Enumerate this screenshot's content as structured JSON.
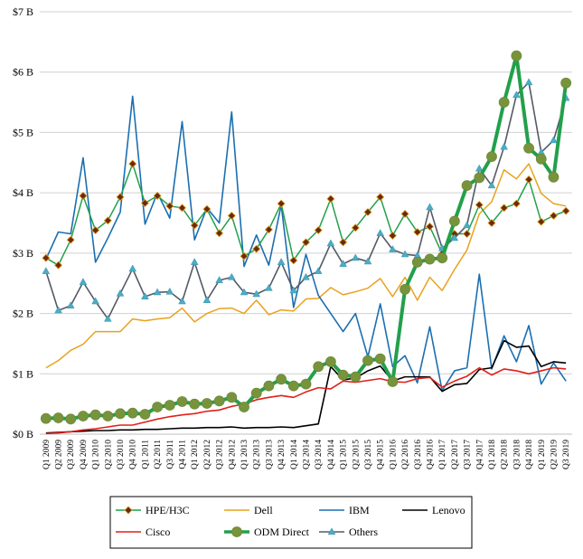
{
  "chart_data": {
    "type": "line",
    "title": "",
    "xlabel": "",
    "ylabel": "",
    "ylim": [
      0,
      7
    ],
    "y_ticks": [
      0,
      1,
      2,
      3,
      4,
      5,
      6,
      7
    ],
    "y_tick_labels": [
      "$0 B",
      "$1 B",
      "$2 B",
      "$3 B",
      "$4 B",
      "$5 B",
      "$6 B",
      "$7 B"
    ],
    "grid": "horizontal",
    "legend_position": "bottom",
    "categories": [
      "Q1 2009",
      "Q2 2009",
      "Q3 2009",
      "Q4 2009",
      "Q1 2010",
      "Q2 2010",
      "Q3 2010",
      "Q4 2010",
      "Q1 2011",
      "Q2 2011",
      "Q3 2011",
      "Q4 2011",
      "Q1 2012",
      "Q2 2012",
      "Q3 2012",
      "Q4 2012",
      "Q1 2013",
      "Q2 2013",
      "Q3 2013",
      "Q4 2013",
      "Q1 2014",
      "Q2 2014",
      "Q3 2014",
      "Q4 2014",
      "Q1 2015",
      "Q2 2015",
      "Q3 2015",
      "Q4 2015",
      "Q1 2016",
      "Q2 2016",
      "Q3 2016",
      "Q4 2016",
      "Q1 2017",
      "Q2 2017",
      "Q3 2017",
      "Q4 2017",
      "Q1 2018",
      "Q2 2018",
      "Q3 2018",
      "Q4 2018",
      "Q1 2019",
      "Q2 2019",
      "Q3 2019"
    ],
    "series": [
      {
        "name": "HPE/H3C",
        "color": "#22a04b",
        "marker": "diamond-dark",
        "width": 1.5,
        "values": [
          2.92,
          2.8,
          3.22,
          3.95,
          3.38,
          3.54,
          3.93,
          4.48,
          3.83,
          3.95,
          3.78,
          3.75,
          3.46,
          3.73,
          3.33,
          3.62,
          2.95,
          3.07,
          3.39,
          3.82,
          2.88,
          3.18,
          3.38,
          3.9,
          3.18,
          3.42,
          3.68,
          3.93,
          3.29,
          3.65,
          3.35,
          3.44,
          2.99,
          3.32,
          3.32,
          3.8,
          3.5,
          3.75,
          3.82,
          4.22,
          3.52,
          3.62,
          3.7
        ]
      },
      {
        "name": "Dell",
        "color": "#e8a21e",
        "marker": "none",
        "width": 1.5,
        "values": [
          1.1,
          1.22,
          1.39,
          1.49,
          1.7,
          1.7,
          1.7,
          1.91,
          1.88,
          1.91,
          1.93,
          2.09,
          1.86,
          2.0,
          2.08,
          2.09,
          2.0,
          2.22,
          1.98,
          2.06,
          2.04,
          2.24,
          2.25,
          2.43,
          2.31,
          2.36,
          2.42,
          2.58,
          2.28,
          2.6,
          2.22,
          2.6,
          2.38,
          2.73,
          3.05,
          3.65,
          3.85,
          4.38,
          4.23,
          4.48,
          3.99,
          3.82,
          3.78
        ]
      },
      {
        "name": "IBM",
        "color": "#1b6fb0",
        "marker": "none",
        "width": 1.6,
        "values": [
          2.9,
          3.35,
          3.32,
          4.58,
          2.85,
          3.25,
          3.68,
          5.6,
          3.48,
          4.0,
          3.58,
          5.18,
          3.22,
          3.75,
          3.5,
          5.34,
          2.78,
          3.3,
          2.8,
          3.8,
          2.1,
          2.98,
          2.3,
          2.0,
          1.7,
          2.0,
          1.28,
          2.16,
          1.12,
          1.3,
          0.85,
          1.78,
          0.72,
          1.05,
          1.1,
          2.65,
          1.08,
          1.63,
          1.2,
          1.8,
          0.83,
          1.18,
          0.88
        ]
      },
      {
        "name": "Lenovo",
        "color": "#000000",
        "marker": "none",
        "width": 1.6,
        "values": [
          0.02,
          0.03,
          0.04,
          0.05,
          0.06,
          0.06,
          0.07,
          0.07,
          0.08,
          0.08,
          0.09,
          0.1,
          0.1,
          0.11,
          0.11,
          0.12,
          0.1,
          0.11,
          0.11,
          0.12,
          0.11,
          0.14,
          0.17,
          1.12,
          0.9,
          0.93,
          1.05,
          1.13,
          0.88,
          0.95,
          0.95,
          0.95,
          0.71,
          0.82,
          0.84,
          1.07,
          1.1,
          1.55,
          1.44,
          1.46,
          1.12,
          1.2,
          1.18
        ]
      },
      {
        "name": "Cisco",
        "color": "#e0201b",
        "marker": "none",
        "width": 1.6,
        "values": [
          0.01,
          0.02,
          0.04,
          0.07,
          0.09,
          0.12,
          0.15,
          0.15,
          0.2,
          0.25,
          0.29,
          0.32,
          0.34,
          0.38,
          0.4,
          0.46,
          0.5,
          0.57,
          0.61,
          0.64,
          0.61,
          0.7,
          0.77,
          0.75,
          0.88,
          0.86,
          0.89,
          0.92,
          0.87,
          0.86,
          0.92,
          0.94,
          0.78,
          0.88,
          0.96,
          1.1,
          0.98,
          1.08,
          1.05,
          1.0,
          1.05,
          1.1,
          1.08
        ]
      },
      {
        "name": "ODM Direct",
        "color": "#22a04b",
        "marker": "circle-olive",
        "width": 4,
        "values": [
          0.26,
          0.27,
          0.25,
          0.3,
          0.32,
          0.3,
          0.34,
          0.35,
          0.33,
          0.45,
          0.48,
          0.54,
          0.5,
          0.51,
          0.55,
          0.61,
          0.45,
          0.68,
          0.8,
          0.91,
          0.8,
          0.83,
          1.12,
          1.2,
          0.98,
          0.95,
          1.22,
          1.25,
          0.87,
          2.4,
          2.85,
          2.9,
          2.92,
          3.53,
          4.12,
          4.25,
          4.6,
          5.5,
          6.27,
          4.74,
          4.56,
          4.26,
          5.82
        ]
      },
      {
        "name": "Others",
        "color": "#545a66",
        "marker": "triangle-teal",
        "width": 1.6,
        "values": [
          2.7,
          2.05,
          2.13,
          2.52,
          2.2,
          1.91,
          2.33,
          2.74,
          2.28,
          2.35,
          2.36,
          2.2,
          2.85,
          2.22,
          2.55,
          2.6,
          2.35,
          2.32,
          2.42,
          2.85,
          2.38,
          2.6,
          2.7,
          3.16,
          2.82,
          2.92,
          2.86,
          3.33,
          3.06,
          2.98,
          2.96,
          3.76,
          3.08,
          3.25,
          3.46,
          4.4,
          4.12,
          4.76,
          5.62,
          5.83,
          4.67,
          4.87,
          5.57
        ]
      }
    ],
    "legend": [
      {
        "label": "HPE/H3C"
      },
      {
        "label": "Dell"
      },
      {
        "label": "IBM"
      },
      {
        "label": "Lenovo"
      },
      {
        "label": "Cisco"
      },
      {
        "label": "ODM Direct"
      },
      {
        "label": "Others"
      }
    ]
  }
}
